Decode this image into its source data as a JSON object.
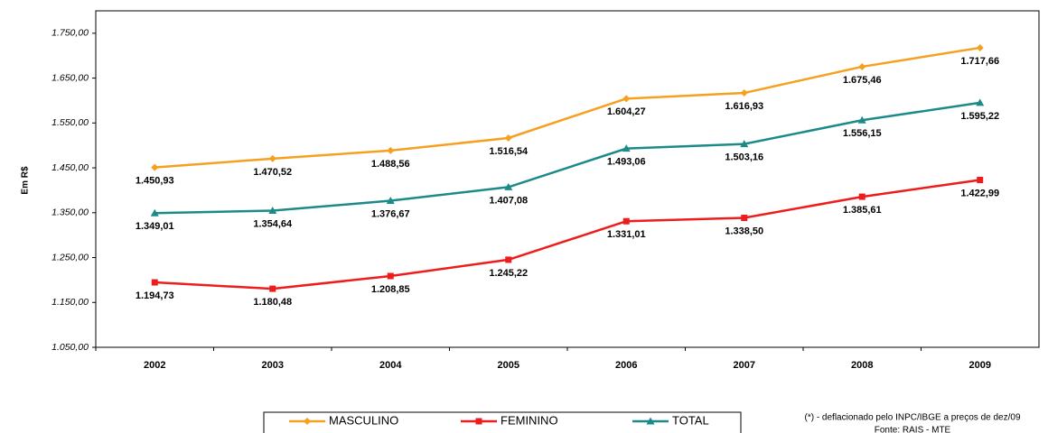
{
  "chart_data": {
    "type": "line",
    "y_label": "Em R$",
    "categories": [
      "2002",
      "2003",
      "2004",
      "2005",
      "2006",
      "2007",
      "2008",
      "2009"
    ],
    "series": [
      {
        "name": "MASCULINO",
        "color": "#f5a01e",
        "marker": "diamond",
        "values": [
          1450.93,
          1470.52,
          1488.56,
          1516.54,
          1604.27,
          1616.93,
          1675.46,
          1717.66
        ],
        "value_labels": [
          "1.450,93",
          "1.470,52",
          "1.488,56",
          "1.516,54",
          "1.604,27",
          "1.616,93",
          "1.675,46",
          "1.717,66"
        ]
      },
      {
        "name": "FEMININO",
        "color": "#ee1c1c",
        "marker": "square",
        "values": [
          1194.73,
          1180.48,
          1208.85,
          1245.22,
          1331.01,
          1338.5,
          1385.61,
          1422.99
        ],
        "value_labels": [
          "1.194,73",
          "1.180,48",
          "1.208,85",
          "1.245,22",
          "1.331,01",
          "1.338,50",
          "1.385,61",
          "1.422,99"
        ]
      },
      {
        "name": "TOTAL",
        "color": "#1d8a8a",
        "marker": "triangle",
        "values": [
          1349.01,
          1354.64,
          1376.67,
          1407.08,
          1493.06,
          1503.16,
          1556.15,
          1595.22
        ],
        "value_labels": [
          "1.349,01",
          "1.354,64",
          "1.376,67",
          "1.407,08",
          "1.493,06",
          "1.503,16",
          "1.556,15",
          "1.595,22"
        ]
      }
    ],
    "ylim": [
      1050,
      1800
    ],
    "yticks": [
      {
        "value": 1050,
        "label": "1.050,00"
      },
      {
        "value": 1150,
        "label": "1.150,00"
      },
      {
        "value": 1250,
        "label": "1.250,00"
      },
      {
        "value": 1350,
        "label": "1.350,00"
      },
      {
        "value": 1450,
        "label": "1.450,00"
      },
      {
        "value": 1550,
        "label": "1.550,00"
      },
      {
        "value": 1650,
        "label": "1.650,00"
      },
      {
        "value": 1750,
        "label": "1.750,00"
      }
    ],
    "legend": "bottom",
    "notes": [
      "(*) - deflacionado pelo INPC/IBGE a preços de dez/09",
      "Fonte: RAIS - MTE"
    ]
  }
}
